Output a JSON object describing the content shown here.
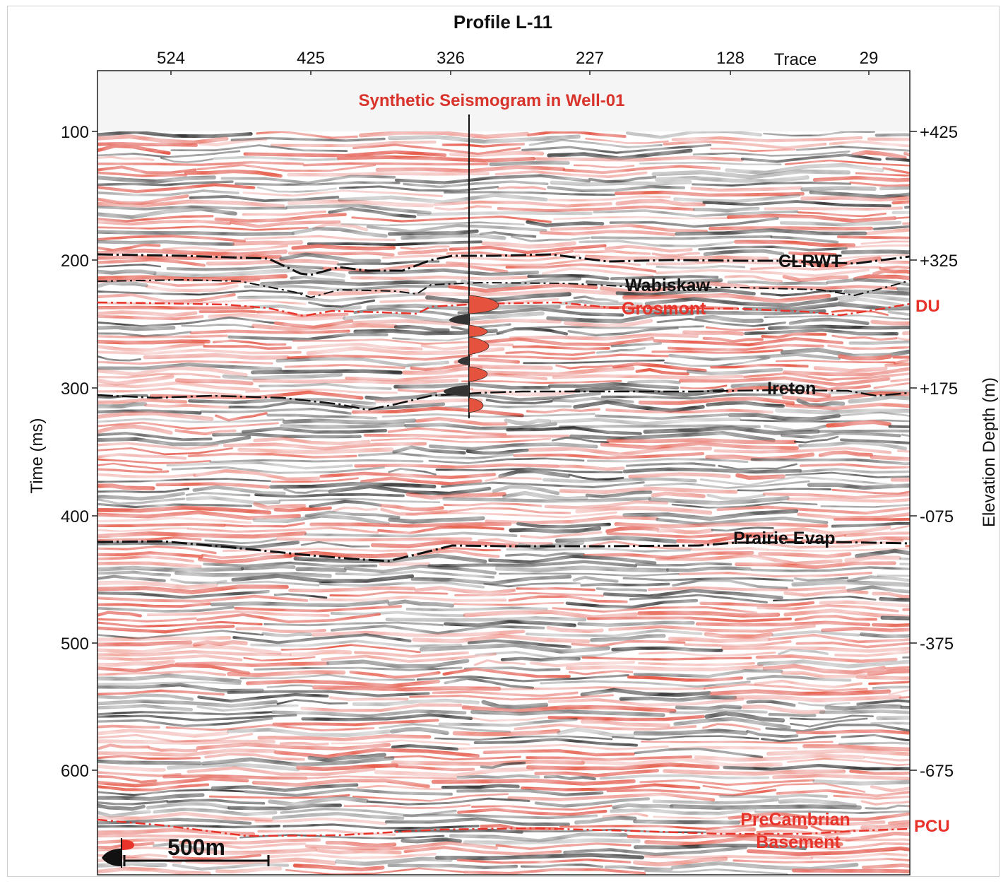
{
  "figure": {
    "title": "Profile L-11",
    "trace_axis_label": "Trace",
    "trace_ticks": [
      "524",
      "425",
      "326",
      "227",
      "128",
      "29"
    ],
    "time_axis_label": "Time (ms)",
    "time_ticks": [
      "100",
      "200",
      "300",
      "400",
      "500",
      "600"
    ],
    "depth_axis_label": "Elevation Depth (m)",
    "depth_ticks": [
      "+425",
      "+325",
      "+175",
      "-075",
      "-375",
      "-675"
    ],
    "well_label": "Synthetic Seismogram in Well-01",
    "scale_bar_label": "500m"
  },
  "horizons": [
    {
      "label": "CLRWT",
      "color": "#111111",
      "line": "dash-dot"
    },
    {
      "label": "Wabiskaw",
      "color": "#111111",
      "line": "dash-dot"
    },
    {
      "label": "Grosmont",
      "color": "#e8332a",
      "line": "dash-dot"
    },
    {
      "label": "Ireton",
      "color": "#111111",
      "line": "dash-dot"
    },
    {
      "label": "Prairie Evap",
      "color": "#111111",
      "line": "dash-dot"
    },
    {
      "label": "PreCambrian",
      "label2": "Basement",
      "color": "#e8332a",
      "line": "dash-dot"
    }
  ],
  "unconformities": [
    {
      "label": "DU",
      "color": "#e8332a"
    },
    {
      "label": "PCU",
      "color": "#e8332a"
    }
  ],
  "colors": {
    "positive": "#e5533f",
    "negative": "#2e2e2e",
    "accent": "#d9342b"
  }
}
